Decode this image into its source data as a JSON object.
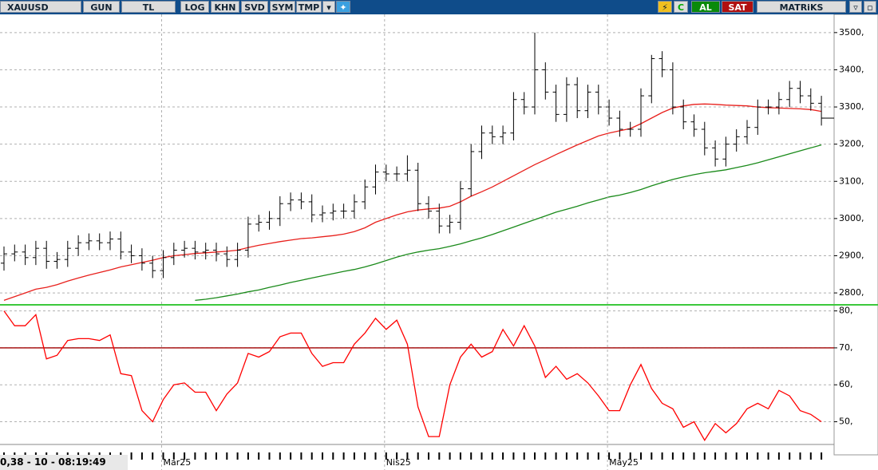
{
  "toolbar": {
    "symbol": "XAUUSD",
    "buttons": [
      "GUN",
      "TL",
      "LOG",
      "KHN",
      "SVD",
      "SYM",
      "TMP"
    ],
    "buy": "AL",
    "sell": "SAT",
    "brand": "MATRiKS"
  },
  "status": "0,38 - 10 - 08:19:49",
  "chart_data": [
    {
      "type": "ohlc",
      "grid": true,
      "categories": [
        null,
        null,
        null,
        null,
        null,
        null,
        null,
        null,
        null,
        null,
        null,
        null,
        null,
        null,
        null,
        "Mar25",
        null,
        null,
        null,
        null,
        null,
        null,
        null,
        null,
        null,
        null,
        null,
        null,
        null,
        null,
        null,
        null,
        null,
        null,
        null,
        null,
        "Nis25",
        null,
        null,
        null,
        null,
        null,
        null,
        null,
        null,
        null,
        null,
        null,
        null,
        null,
        null,
        null,
        null,
        null,
        null,
        null,
        null,
        "May25",
        null,
        null,
        null,
        null,
        null,
        null,
        null,
        null,
        null,
        null,
        null,
        null,
        null,
        null,
        null,
        null,
        null,
        null,
        null,
        null
      ],
      "open": [
        2880,
        2905,
        2910,
        2895,
        2920,
        2885,
        2890,
        2920,
        2935,
        2940,
        2935,
        2945,
        2910,
        2900,
        2880,
        2860,
        2895,
        2915,
        2920,
        2910,
        2915,
        2905,
        2890,
        2915,
        2985,
        2990,
        3000,
        3040,
        3050,
        3045,
        3010,
        3015,
        3020,
        3020,
        3045,
        3085,
        3125,
        3120,
        3120,
        3130,
        3040,
        3020,
        2980,
        2990,
        3080,
        3180,
        3230,
        3220,
        3230,
        3320,
        3300,
        3400,
        3340,
        3280,
        3360,
        3290,
        3340,
        3300,
        3270,
        3240,
        3240,
        3330,
        3430,
        3400,
        3300,
        3260,
        3240,
        3190,
        3160,
        3200,
        3220,
        3245,
        3300,
        3300,
        3320,
        3350,
        3330,
        3310
      ],
      "high": [
        2925,
        2930,
        2930,
        2940,
        2940,
        2910,
        2940,
        2955,
        2960,
        2960,
        2965,
        2965,
        2930,
        2920,
        2900,
        2915,
        2935,
        2940,
        2940,
        2935,
        2935,
        2925,
        2935,
        3005,
        3010,
        3020,
        3060,
        3070,
        3070,
        3065,
        3035,
        3040,
        3040,
        3065,
        3105,
        3145,
        3145,
        3140,
        3170,
        3150,
        3060,
        3040,
        3010,
        3100,
        3200,
        3250,
        3250,
        3250,
        3340,
        3340,
        3500,
        3420,
        3360,
        3380,
        3380,
        3360,
        3360,
        3320,
        3290,
        3260,
        3350,
        3440,
        3450,
        3420,
        3320,
        3280,
        3260,
        3210,
        3220,
        3240,
        3265,
        3320,
        3320,
        3340,
        3370,
        3370,
        3350,
        3330
      ],
      "low": [
        2860,
        2885,
        2875,
        2875,
        2865,
        2865,
        2870,
        2900,
        2915,
        2915,
        2915,
        2890,
        2880,
        2860,
        2840,
        2840,
        2875,
        2895,
        2890,
        2890,
        2885,
        2870,
        2870,
        2895,
        2965,
        2970,
        2980,
        3020,
        3025,
        2990,
        2990,
        2995,
        3000,
        3000,
        3025,
        3065,
        3100,
        3100,
        3100,
        3020,
        3000,
        2960,
        2960,
        2970,
        3060,
        3160,
        3200,
        3200,
        3210,
        3280,
        3280,
        3320,
        3260,
        3260,
        3270,
        3270,
        3280,
        3250,
        3220,
        3220,
        3220,
        3310,
        3380,
        3280,
        3240,
        3220,
        3170,
        3140,
        3140,
        3180,
        3200,
        3225,
        3280,
        3280,
        3300,
        3310,
        3290,
        3250
      ],
      "close": [
        2905,
        2910,
        2895,
        2920,
        2885,
        2890,
        2920,
        2935,
        2940,
        2935,
        2945,
        2910,
        2900,
        2880,
        2860,
        2895,
        2915,
        2920,
        2910,
        2915,
        2905,
        2890,
        2915,
        2985,
        2990,
        3000,
        3040,
        3050,
        3045,
        3010,
        3015,
        3020,
        3020,
        3045,
        3085,
        3125,
        3120,
        3120,
        3130,
        3040,
        3020,
        2980,
        2990,
        3080,
        3180,
        3230,
        3220,
        3230,
        3320,
        3300,
        3400,
        3340,
        3280,
        3360,
        3290,
        3340,
        3300,
        3270,
        3240,
        3240,
        3330,
        3430,
        3400,
        3300,
        3260,
        3240,
        3190,
        3160,
        3200,
        3220,
        3245,
        3300,
        3300,
        3320,
        3350,
        3330,
        3310,
        3270
      ],
      "bar_color": "#000000",
      "lines": [
        {
          "color": "#e8201c",
          "values": [
            2780,
            2790,
            2800,
            2810,
            2815,
            2822,
            2832,
            2840,
            2848,
            2855,
            2862,
            2870,
            2876,
            2882,
            2888,
            2895,
            2900,
            2903,
            2906,
            2908,
            2910,
            2912,
            2915,
            2922,
            2928,
            2933,
            2938,
            2942,
            2946,
            2948,
            2951,
            2954,
            2958,
            2965,
            2975,
            2990,
            3000,
            3010,
            3018,
            3023,
            3026,
            3028,
            3033,
            3045,
            3060,
            3072,
            3085,
            3100,
            3115,
            3130,
            3145,
            3158,
            3172,
            3185,
            3198,
            3210,
            3222,
            3230,
            3236,
            3242,
            3255,
            3270,
            3285,
            3297,
            3303,
            3307,
            3308,
            3307,
            3305,
            3304,
            3303,
            3300,
            3298,
            3297,
            3296,
            3295,
            3293,
            3288
          ]
        },
        {
          "color": "#1a8a1a",
          "values": [
            null,
            null,
            null,
            null,
            null,
            null,
            null,
            null,
            null,
            null,
            null,
            null,
            null,
            null,
            null,
            null,
            null,
            null,
            2780,
            2783,
            2787,
            2792,
            2797,
            2803,
            2808,
            2815,
            2821,
            2828,
            2834,
            2840,
            2846,
            2852,
            2858,
            2863,
            2870,
            2878,
            2887,
            2896,
            2904,
            2910,
            2915,
            2919,
            2925,
            2932,
            2940,
            2948,
            2957,
            2967,
            2977,
            2987,
            2997,
            3007,
            3017,
            3025,
            3033,
            3042,
            3050,
            3058,
            3063,
            3070,
            3078,
            3088,
            3097,
            3105,
            3112,
            3118,
            3123,
            3127,
            3131,
            3137,
            3143,
            3150,
            3158,
            3166,
            3174,
            3182,
            3190,
            3198
          ]
        }
      ],
      "ylim": [
        2768,
        3549
      ],
      "yticks": [
        {
          "value": 2800,
          "label": "2800,"
        },
        {
          "value": 2900,
          "label": "2900,"
        },
        {
          "value": 3000,
          "label": "3000,"
        },
        {
          "value": 3100,
          "label": "3100,"
        },
        {
          "value": 3200,
          "label": "3200,"
        },
        {
          "value": 3300,
          "label": "3300,"
        },
        {
          "value": 3400,
          "label": "3400,"
        },
        {
          "value": 3500,
          "label": "3500,"
        }
      ]
    },
    {
      "type": "line",
      "grid": true,
      "color": "#ff0000",
      "values": [
        80,
        76,
        76,
        79,
        67,
        68,
        72,
        72.5,
        72.5,
        72,
        73.5,
        63,
        62.5,
        53,
        50,
        56,
        60,
        60.5,
        58,
        58,
        53,
        57.5,
        60.5,
        68.5,
        67.5,
        69,
        73,
        74,
        74,
        68.5,
        65,
        66,
        66,
        71,
        74,
        78,
        75,
        77.5,
        71,
        54,
        46,
        46,
        60,
        67.5,
        71,
        67.5,
        69,
        75,
        70.5,
        76,
        70.5,
        62,
        65,
        61.5,
        63,
        60.5,
        57,
        53,
        53,
        60,
        65.5,
        59,
        55,
        53.5,
        48.5,
        50,
        45,
        49.5,
        47,
        49.5,
        53.5,
        55,
        53.5,
        58.5,
        57,
        53,
        52,
        50
      ],
      "level": 70,
      "level_color": "#a00000",
      "ylim": [
        44.5,
        81
      ],
      "yticks": [
        {
          "value": 50,
          "label": "50,"
        },
        {
          "value": 60,
          "label": "60,"
        },
        {
          "value": 70,
          "label": "70,"
        },
        {
          "value": 80,
          "label": "80,"
        }
      ]
    }
  ]
}
